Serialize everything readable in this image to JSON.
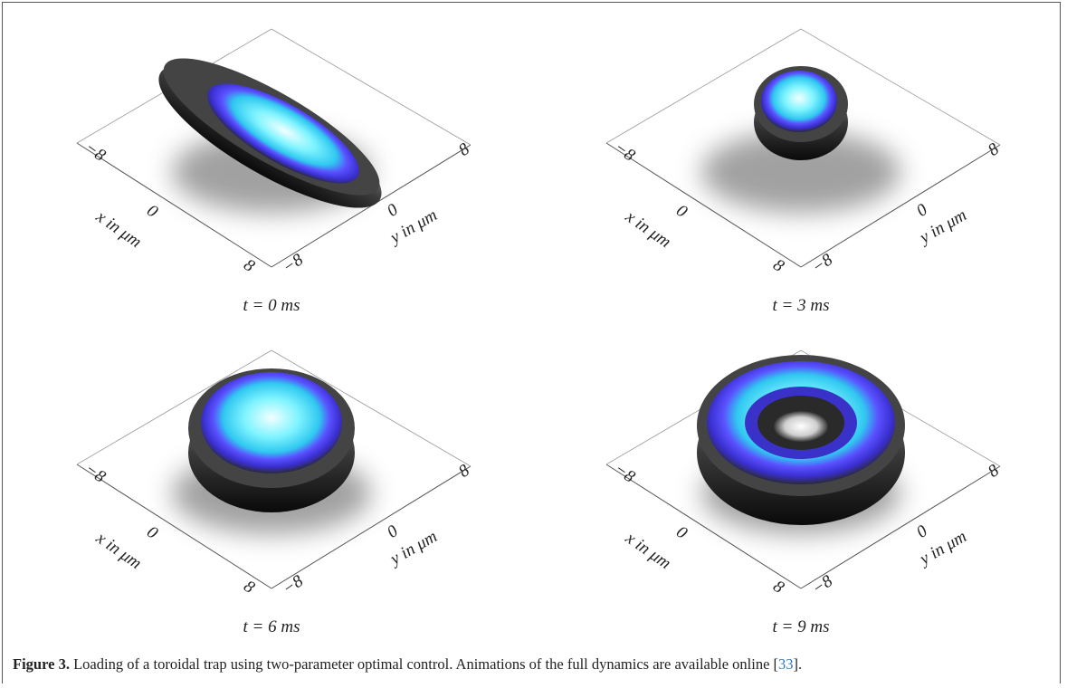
{
  "panels": [
    {
      "caption": "t = 0 ms",
      "x_label": "x in μm",
      "y_label": "y in μm",
      "x_ticks": [
        "−8",
        "0",
        "8"
      ],
      "y_ticks": [
        "−8",
        "0",
        "8"
      ]
    },
    {
      "caption": "t = 3 ms",
      "x_label": "x in μm",
      "y_label": "y in μm",
      "x_ticks": [
        "−8",
        "0",
        "8"
      ],
      "y_ticks": [
        "−8",
        "0",
        "8"
      ]
    },
    {
      "caption": "t = 6 ms",
      "x_label": "x in μm",
      "y_label": "y in μm",
      "x_ticks": [
        "−8",
        "0",
        "8"
      ],
      "y_ticks": [
        "−8",
        "0",
        "8"
      ]
    },
    {
      "caption": "t = 9 ms",
      "x_label": "x in μm",
      "y_label": "y in μm",
      "x_ticks": [
        "−8",
        "0",
        "8"
      ],
      "y_ticks": [
        "−8",
        "0",
        "8"
      ]
    }
  ],
  "figure_caption": {
    "label": "Figure 3.",
    "text": "Loading of a toroidal trap using two-parameter optimal control. Animations of the full dynamics are available online [",
    "ref": "33",
    "end": "]."
  }
}
